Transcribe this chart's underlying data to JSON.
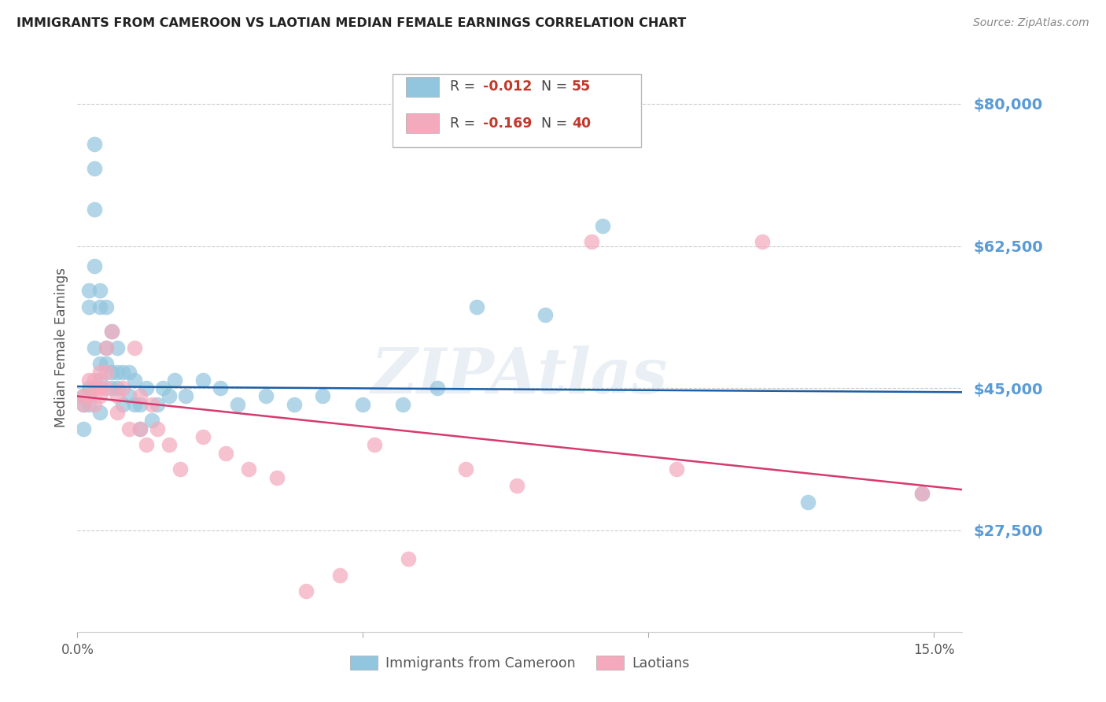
{
  "title": "IMMIGRANTS FROM CAMEROON VS LAOTIAN MEDIAN FEMALE EARNINGS CORRELATION CHART",
  "source": "Source: ZipAtlas.com",
  "ylabel": "Median Female Earnings",
  "ytick_labels": [
    "$27,500",
    "$45,000",
    "$62,500",
    "$80,000"
  ],
  "ytick_values": [
    27500,
    45000,
    62500,
    80000
  ],
  "ymin": 15000,
  "ymax": 85000,
  "xmin": 0.0,
  "xmax": 0.155,
  "legend_R1": "R = -0.012",
  "legend_N1": "N = 55",
  "legend_R2": "R = -0.169",
  "legend_N2": "N = 40",
  "watermark": "ZIPAtlas",
  "blue_color": "#92c5de",
  "pink_color": "#f4a9bc",
  "trend_blue": "#1a5fa8",
  "trend_pink": "#d63a6e",
  "bg_color": "#ffffff",
  "grid_color": "#cccccc",
  "axis_label_color": "#5b9bd5",
  "title_color": "#222222",
  "cameroon_x": [
    0.001,
    0.001,
    0.001,
    0.002,
    0.002,
    0.002,
    0.002,
    0.003,
    0.003,
    0.003,
    0.003,
    0.003,
    0.004,
    0.004,
    0.004,
    0.004,
    0.004,
    0.005,
    0.005,
    0.005,
    0.006,
    0.006,
    0.006,
    0.007,
    0.007,
    0.007,
    0.008,
    0.008,
    0.009,
    0.009,
    0.01,
    0.01,
    0.011,
    0.011,
    0.012,
    0.013,
    0.014,
    0.015,
    0.016,
    0.017,
    0.019,
    0.022,
    0.025,
    0.028,
    0.033,
    0.038,
    0.043,
    0.05,
    0.057,
    0.063,
    0.07,
    0.082,
    0.092,
    0.128,
    0.148
  ],
  "cameroon_y": [
    43000,
    44000,
    40000,
    57000,
    55000,
    45000,
    43000,
    75000,
    72000,
    67000,
    60000,
    50000,
    57000,
    55000,
    48000,
    46000,
    42000,
    55000,
    50000,
    48000,
    52000,
    47000,
    45000,
    50000,
    47000,
    45000,
    47000,
    43000,
    47000,
    44000,
    46000,
    43000,
    43000,
    40000,
    45000,
    41000,
    43000,
    45000,
    44000,
    46000,
    44000,
    46000,
    45000,
    43000,
    44000,
    43000,
    44000,
    43000,
    43000,
    45000,
    55000,
    54000,
    65000,
    31000,
    32000
  ],
  "laotian_x": [
    0.001,
    0.001,
    0.002,
    0.002,
    0.003,
    0.003,
    0.003,
    0.004,
    0.004,
    0.004,
    0.005,
    0.005,
    0.005,
    0.006,
    0.007,
    0.007,
    0.008,
    0.009,
    0.01,
    0.011,
    0.011,
    0.012,
    0.013,
    0.014,
    0.016,
    0.018,
    0.022,
    0.026,
    0.03,
    0.035,
    0.04,
    0.046,
    0.052,
    0.058,
    0.068,
    0.077,
    0.09,
    0.105,
    0.12,
    0.148
  ],
  "laotian_y": [
    44000,
    43000,
    46000,
    44000,
    46000,
    45000,
    43000,
    47000,
    45000,
    44000,
    50000,
    47000,
    45000,
    52000,
    44000,
    42000,
    45000,
    40000,
    50000,
    44000,
    40000,
    38000,
    43000,
    40000,
    38000,
    35000,
    39000,
    37000,
    35000,
    34000,
    20000,
    22000,
    38000,
    24000,
    35000,
    33000,
    63000,
    35000,
    63000,
    32000
  ]
}
